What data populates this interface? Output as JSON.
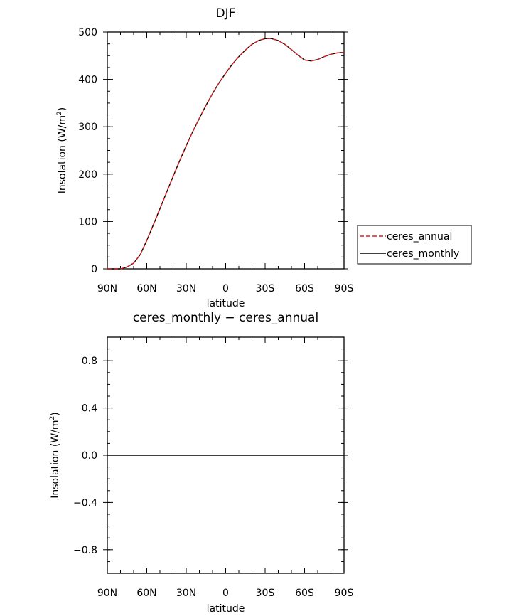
{
  "chart_data": [
    {
      "type": "line",
      "title": "DJF",
      "xlabel": "latitude",
      "ylabel": "Insolation  (W/m",
      "ylabel_sup": "2",
      "ylabel_tail": ")",
      "xlim": [
        90,
        -90
      ],
      "ylim": [
        0,
        500
      ],
      "x_ticks": [
        90,
        60,
        30,
        0,
        -30,
        -60,
        -90
      ],
      "x_tick_labels": [
        "90N",
        "60N",
        "30N",
        "0",
        "30S",
        "60S",
        "90S"
      ],
      "y_ticks": [
        0,
        100,
        200,
        300,
        400,
        500
      ],
      "y_tick_labels": [
        "0",
        "100",
        "200",
        "300",
        "400",
        "500"
      ],
      "legend_position": "right",
      "series": [
        {
          "name": "ceres_annual",
          "color": "#e02020",
          "dash": "dashed",
          "x": [
            90,
            85,
            80,
            75,
            70,
            65,
            60,
            55,
            50,
            45,
            40,
            35,
            30,
            25,
            20,
            15,
            10,
            5,
            0,
            -5,
            -10,
            -15,
            -20,
            -25,
            -30,
            -35,
            -40,
            -45,
            -50,
            -55,
            -60,
            -65,
            -70,
            -75,
            -80,
            -85,
            -90
          ],
          "values": [
            0,
            0,
            0,
            4,
            12,
            30,
            60,
            93,
            127,
            161,
            195,
            228,
            260,
            290,
            318,
            345,
            370,
            393,
            413,
            432,
            448,
            462,
            474,
            482,
            486,
            486,
            482,
            474,
            463,
            451,
            441,
            439,
            442,
            448,
            453,
            456,
            457
          ]
        },
        {
          "name": "ceres_monthly",
          "color": "#000000",
          "dash": "solid",
          "x": [
            90,
            85,
            80,
            75,
            70,
            65,
            60,
            55,
            50,
            45,
            40,
            35,
            30,
            25,
            20,
            15,
            10,
            5,
            0,
            -5,
            -10,
            -15,
            -20,
            -25,
            -30,
            -35,
            -40,
            -45,
            -50,
            -55,
            -60,
            -65,
            -70,
            -75,
            -80,
            -85,
            -90
          ],
          "values": [
            0,
            0,
            0,
            4,
            12,
            30,
            60,
            93,
            127,
            161,
            195,
            228,
            260,
            290,
            318,
            345,
            370,
            393,
            413,
            432,
            448,
            462,
            474,
            482,
            486,
            486,
            482,
            474,
            463,
            451,
            441,
            439,
            442,
            448,
            453,
            456,
            457
          ]
        }
      ]
    },
    {
      "type": "line",
      "title": "ceres_monthly − ceres_annual",
      "xlabel": "latitude",
      "ylabel": "Insolation  (W/m",
      "ylabel_sup": "2",
      "ylabel_tail": ")",
      "xlim": [
        90,
        -90
      ],
      "ylim": [
        -1,
        1
      ],
      "x_ticks": [
        90,
        60,
        30,
        0,
        -30,
        -60,
        -90
      ],
      "x_tick_labels": [
        "90N",
        "60N",
        "30N",
        "0",
        "30S",
        "60S",
        "90S"
      ],
      "y_ticks": [
        -0.8,
        -0.4,
        0.0,
        0.4,
        0.8
      ],
      "y_tick_labels": [
        "−0.8",
        "−0.4",
        "0.0",
        "0.4",
        "0.8"
      ],
      "series": [
        {
          "color": "#000000",
          "dash": "solid",
          "x": [
            90,
            -90
          ],
          "values": [
            0,
            0
          ]
        }
      ]
    }
  ]
}
